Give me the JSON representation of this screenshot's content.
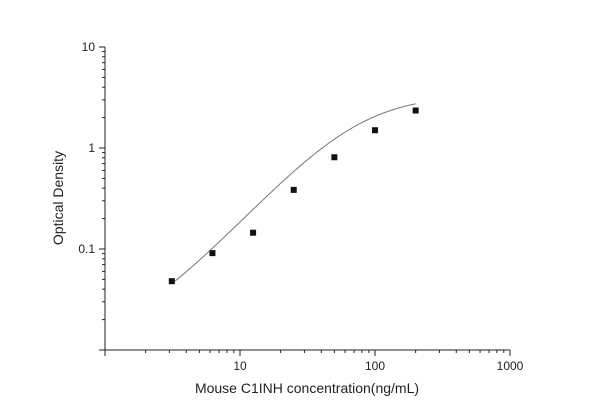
{
  "chart_data": {
    "type": "scatter",
    "title": "",
    "xlabel": "Mouse C1INH concentration(ng/mL)",
    "ylabel": "Optical Density",
    "x_scale": "log",
    "y_scale": "log",
    "xlim": [
      1,
      1000
    ],
    "ylim": [
      0.01,
      10
    ],
    "x_tick_labels": [
      "10",
      "100",
      "1000"
    ],
    "y_tick_labels": [
      "10",
      "1",
      "0.1"
    ],
    "grid": false,
    "legend": "none",
    "series": [
      {
        "points": [
          {
            "x": 3.125,
            "y": 0.048
          },
          {
            "x": 6.25,
            "y": 0.091
          },
          {
            "x": 12.5,
            "y": 0.145
          },
          {
            "x": 25,
            "y": 0.385
          },
          {
            "x": 50,
            "y": 0.81
          },
          {
            "x": 100,
            "y": 1.5
          },
          {
            "x": 200,
            "y": 2.35
          }
        ],
        "fit": "four-parameter logistic",
        "fit_params": {
          "A": 0.012,
          "B": 1.45,
          "C": 75,
          "D": 3.4
        },
        "fit_range": [
          3.125,
          200
        ]
      }
    ],
    "colors": {
      "marker": "#111111",
      "curve": "#777777",
      "axis": "#222222"
    }
  }
}
